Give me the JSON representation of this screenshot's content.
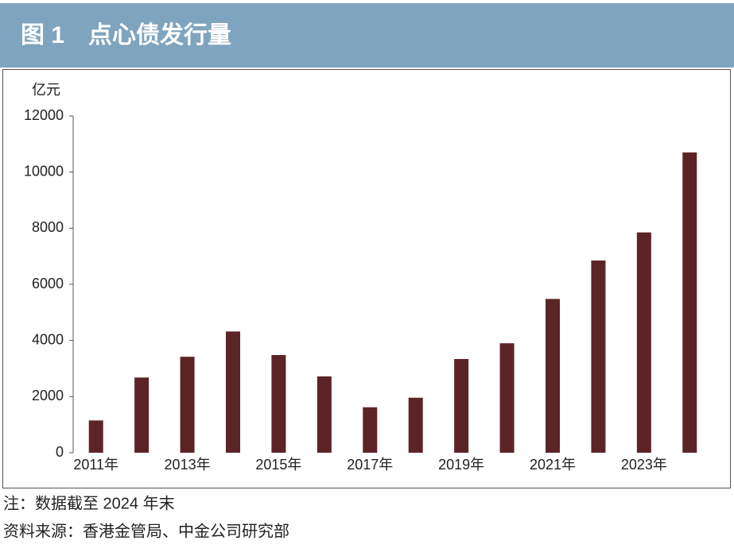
{
  "chart_data": {
    "type": "bar",
    "title": "图 1　点心债发行量",
    "y_label": "亿元",
    "categories": [
      "2011年",
      null,
      "2013年",
      null,
      "2015年",
      null,
      "2017年",
      null,
      "2019年",
      null,
      "2021年",
      null,
      "2023年",
      null
    ],
    "values": [
      1150,
      2680,
      3420,
      4320,
      3480,
      2720,
      1620,
      1960,
      3340,
      3900,
      5480,
      6850,
      7850,
      10700
    ],
    "color": "#5c2426",
    "ylim": [
      0,
      12000
    ],
    "yticks": [
      0,
      2000,
      4000,
      6000,
      8000,
      10000,
      12000
    ],
    "grid": false,
    "notes": [
      "注：数据截至 2024 年末",
      "资料来源：香港金管局、中金公司研究部"
    ]
  }
}
